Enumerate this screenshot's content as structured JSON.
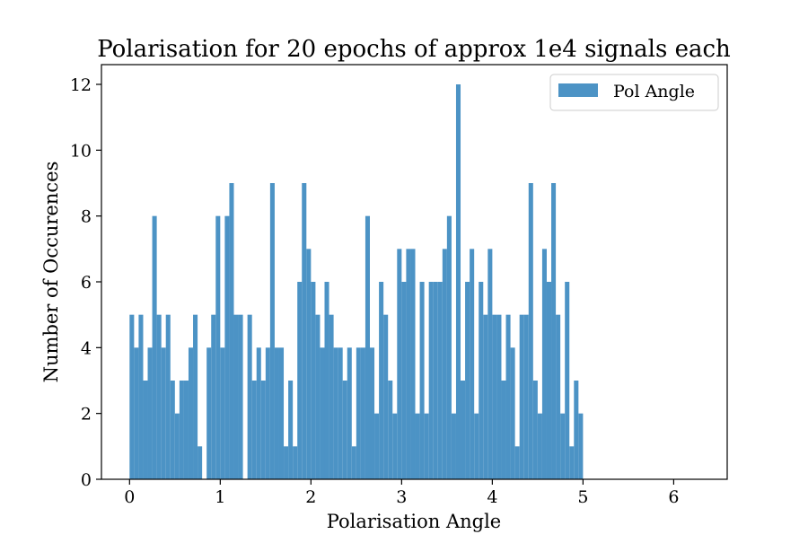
{
  "chart_data": {
    "type": "bar",
    "title": "Polarisation for 20 epochs of approx 1e4 signals each",
    "xlabel": "Polarisation Angle",
    "ylabel": "Number of Occurences",
    "xlim": [
      -0.31,
      6.59
    ],
    "ylim": [
      0,
      12.6
    ],
    "bin_start": 0.0,
    "bin_width": 0.05,
    "xticks": [
      0,
      1,
      2,
      3,
      4,
      5,
      6
    ],
    "yticks": [
      0,
      2,
      4,
      6,
      8,
      10,
      12
    ],
    "xtick_labels": [
      "0",
      "1",
      "2",
      "3",
      "4",
      "5",
      "6"
    ],
    "ytick_labels": [
      "0",
      "2",
      "4",
      "6",
      "8",
      "10",
      "12"
    ],
    "grid": false,
    "legend_position": "top-right",
    "color": "#4c93c5",
    "series": [
      {
        "name": "Pol Angle",
        "values": [
          5,
          4,
          5,
          3,
          4,
          8,
          5,
          4,
          5,
          3,
          2,
          3,
          3,
          4,
          5,
          1,
          0,
          4,
          5,
          8,
          4,
          8,
          9,
          5,
          5,
          0,
          5,
          3,
          4,
          3,
          4,
          9,
          4,
          4,
          1,
          3,
          1,
          6,
          9,
          7,
          6,
          5,
          4,
          6,
          5,
          4,
          4,
          3,
          4,
          1,
          4,
          4,
          8,
          4,
          2,
          6,
          5,
          3,
          2,
          7,
          6,
          7,
          7,
          2,
          6,
          2,
          6,
          6,
          6,
          7,
          8,
          2,
          12,
          3,
          6,
          7,
          2,
          6,
          5,
          7,
          5,
          5,
          3,
          5,
          4,
          1,
          5,
          5,
          9,
          3,
          2,
          7,
          6,
          9,
          5,
          2,
          6,
          1,
          3,
          2
        ]
      }
    ]
  }
}
